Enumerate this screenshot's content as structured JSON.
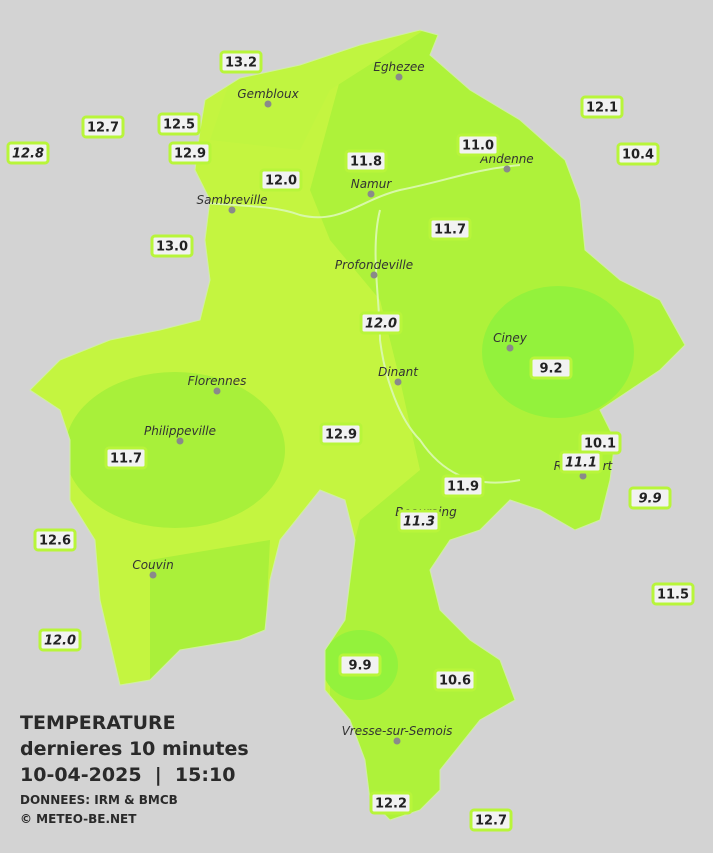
{
  "legend": {
    "title": "TEMPERATURE",
    "subtitle": "dernieres 10 minutes",
    "datetime": "10-04-2025  |  15:10",
    "source": "DONNEES: IRM & BMCB",
    "credit": "© METEO-BE.NET"
  },
  "towns": [
    "Eghezee",
    "Gembloux",
    "Andenne",
    "Namur",
    "Sambreville",
    "Profondeville",
    "Ciney",
    "Florennes",
    "Dinant",
    "Philippeville",
    "Rochefort",
    "Beauraing",
    "Couvin",
    "Vresse-sur-Semois"
  ],
  "readings": [
    {
      "value": "13.2"
    },
    {
      "value": "12.7"
    },
    {
      "value": "12.5"
    },
    {
      "value": "12.8",
      "italic": true
    },
    {
      "value": "12.9"
    },
    {
      "value": "12.0"
    },
    {
      "value": "11.8"
    },
    {
      "value": "11.0"
    },
    {
      "value": "12.1"
    },
    {
      "value": "10.4"
    },
    {
      "value": "13.0"
    },
    {
      "value": "11.7"
    },
    {
      "value": "12.0",
      "italic": true
    },
    {
      "value": "9.2"
    },
    {
      "value": "12.9"
    },
    {
      "value": "11.7"
    },
    {
      "value": "10.1"
    },
    {
      "value": "11.1",
      "italic": true
    },
    {
      "value": "11.9"
    },
    {
      "value": "11.3",
      "italic": true
    },
    {
      "value": "9.9",
      "italic": true
    },
    {
      "value": "12.6"
    },
    {
      "value": "11.5"
    },
    {
      "value": "12.0",
      "italic": true
    },
    {
      "value": "9.9"
    },
    {
      "value": "10.6"
    },
    {
      "value": "12.2"
    },
    {
      "value": "12.7"
    }
  ]
}
